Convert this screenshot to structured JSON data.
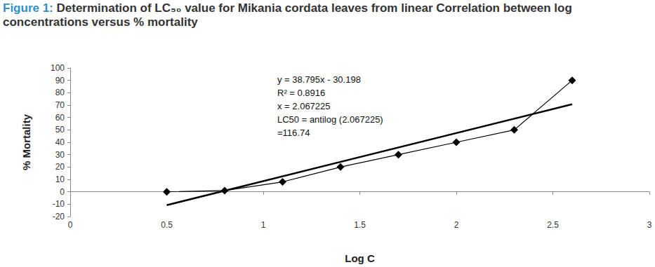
{
  "chart_data": {
    "type": "line",
    "title": "Figure 1: Determination of LC₅₀ value for Mikania cordata leaves from linear Correlation between log concentrations versus % mortality",
    "x_label": "Log C",
    "y_label": "% Mortality",
    "annotations": [
      "y = 38.795x - 30.198",
      "R² = 0.8916",
      "x = 2.067225",
      "LC50 = antilog (2.067225)",
      "=116.74"
    ],
    "series": [
      {
        "type": "line",
        "marker": "diamond",
        "line_style": "thin",
        "color": "#000000",
        "x": [
          0.5,
          0.8,
          1.1,
          1.4,
          1.7,
          2.0,
          2.3,
          2.6
        ],
        "values": [
          0,
          1,
          8,
          20,
          30,
          40,
          50,
          90
        ]
      },
      {
        "type": "line",
        "marker": "none",
        "line_style": "thick",
        "color": "#000000",
        "x": [
          0.5,
          2.6
        ],
        "values": [
          -10.8,
          70.7
        ]
      }
    ],
    "xlim": [
      0,
      3
    ],
    "xticks": [
      0,
      0.5,
      1,
      1.5,
      2,
      2.5,
      3
    ],
    "ylim": [
      -20,
      100
    ],
    "yticks": [
      -20,
      -10,
      0,
      10,
      20,
      30,
      40,
      50,
      60,
      70,
      80,
      90,
      100
    ],
    "grid": false
  }
}
